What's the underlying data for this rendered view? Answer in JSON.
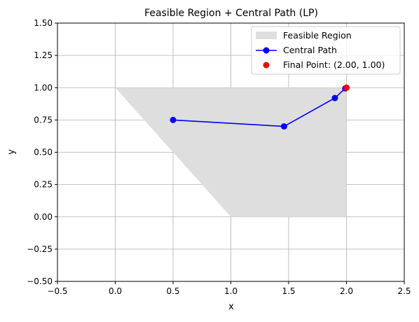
{
  "chart_data": {
    "type": "line",
    "title": "Feasible Region + Central Path (LP)",
    "xlabel": "x",
    "ylabel": "y",
    "xlim": [
      -0.5,
      2.5
    ],
    "ylim": [
      -0.5,
      1.5
    ],
    "xticks": [
      -0.5,
      0.0,
      0.5,
      1.0,
      1.5,
      2.0,
      2.5
    ],
    "yticks": [
      -0.5,
      -0.25,
      0.0,
      0.25,
      0.5,
      0.75,
      1.0,
      1.25,
      1.5
    ],
    "xtick_labels": [
      "−0.5",
      "0.0",
      "0.5",
      "1.0",
      "1.5",
      "2.0",
      "2.5"
    ],
    "ytick_labels": [
      "−0.50",
      "−0.25",
      "0.00",
      "0.25",
      "0.50",
      "0.75",
      "1.00",
      "1.25",
      "1.50"
    ],
    "grid": true,
    "legend_position": "top-right",
    "feasible_region": {
      "name": "Feasible Region",
      "vertices": [
        [
          0,
          1
        ],
        [
          2,
          1
        ],
        [
          2,
          0
        ],
        [
          1,
          0
        ]
      ],
      "color": "#dedede"
    },
    "central_path": {
      "name": "Central Path",
      "x": [
        0.5,
        1.46,
        1.9,
        1.99,
        2.0
      ],
      "y": [
        0.75,
        0.7,
        0.92,
        0.995,
        1.0
      ],
      "color": "#0000ff"
    },
    "final_point": {
      "name": "Final Point: (2.00, 1.00)",
      "x": 2.0,
      "y": 1.0,
      "color": "#ff0000"
    }
  }
}
